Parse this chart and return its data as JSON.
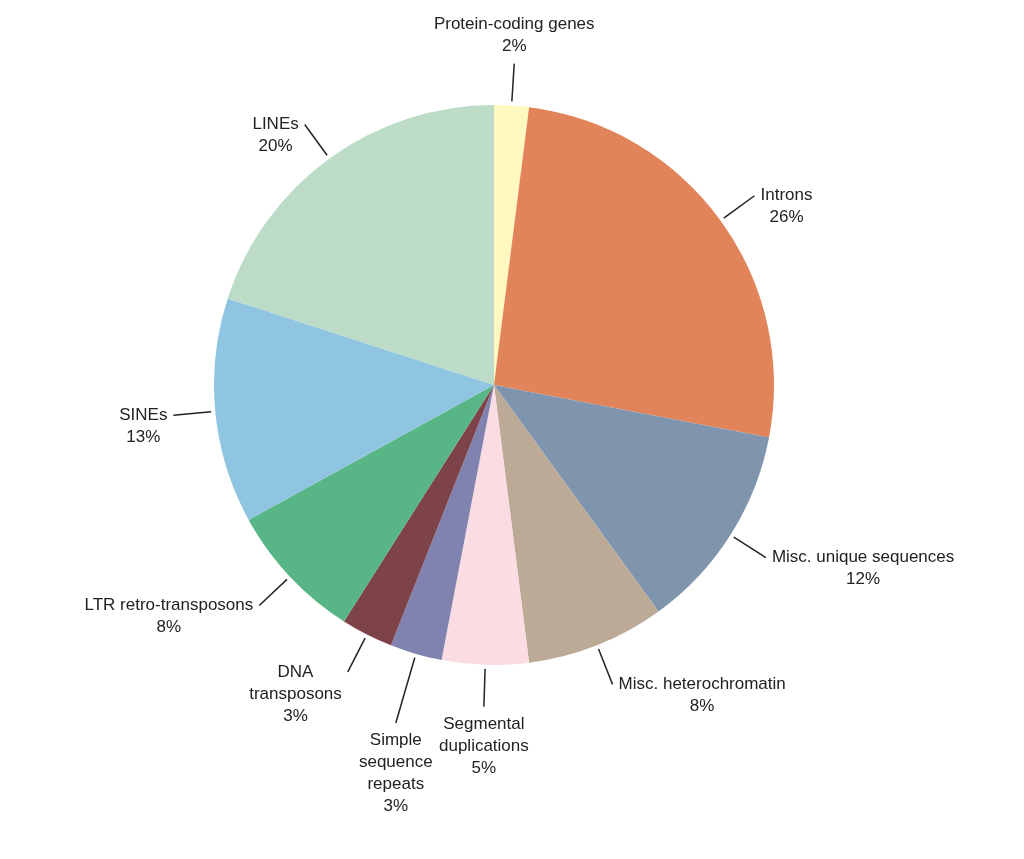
{
  "chart_data": {
    "type": "pie",
    "categories": [
      "Protein-coding genes",
      "Introns",
      "Misc. unique sequences",
      "Misc. heterochromatin",
      "Segmental duplications",
      "Simple sequence repeats",
      "DNA transposons",
      "LTR retro-transposons",
      "SINEs",
      "LINEs"
    ],
    "values": [
      2,
      26,
      12,
      8,
      5,
      3,
      3,
      8,
      13,
      20
    ],
    "value_labels": [
      "2%",
      "26%",
      "12%",
      "8%",
      "5%",
      "3%",
      "3%",
      "8%",
      "13%",
      "20%"
    ],
    "colors": [
      "#fff9c1",
      "#e2845a",
      "#7f95ad",
      "#bcaa97",
      "#fadce2",
      "#8083b0",
      "#7e4249",
      "#58b585",
      "#8fc5e0",
      "#bcdcc8"
    ]
  }
}
